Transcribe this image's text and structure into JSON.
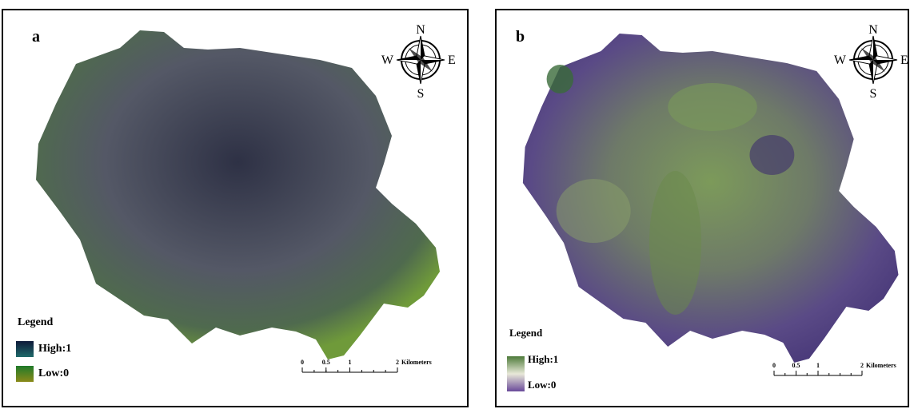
{
  "panels": [
    {
      "label": "a",
      "compass": {
        "n": "N",
        "e": "E",
        "s": "S",
        "w": "W"
      },
      "legend": {
        "title": "Legend",
        "high": "High:1",
        "low": "Low:0"
      },
      "scale": {
        "ticks": [
          0,
          0.5,
          1,
          2
        ],
        "unit": "Kilometers"
      }
    },
    {
      "label": "b",
      "compass": {
        "n": "N",
        "e": "E",
        "s": "S",
        "w": "W"
      },
      "legend": {
        "title": "Legend",
        "high": "High:1",
        "low": "Low:0"
      },
      "scale": {
        "ticks": [
          0,
          0.5,
          1,
          2
        ],
        "unit": "Kilometers"
      }
    }
  ]
}
